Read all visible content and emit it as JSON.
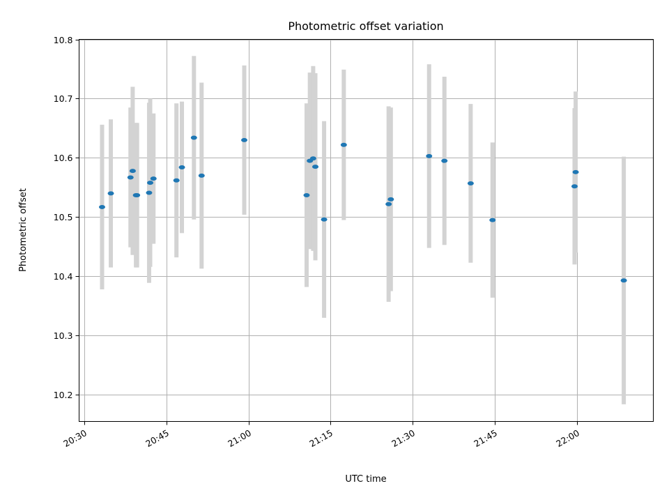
{
  "chart_data": {
    "type": "scatter",
    "title": "Photometric offset variation",
    "xlabel": "UTC time",
    "ylabel": "Photometric offset",
    "xlim": [
      "20:29",
      "22:14"
    ],
    "ylim": [
      10.155,
      10.8
    ],
    "xticks": [
      "20:30",
      "20:45",
      "21:00",
      "21:15",
      "21:30",
      "21:45",
      "22:00"
    ],
    "yticks": [
      "10.2",
      "10.3",
      "10.4",
      "10.5",
      "10.6",
      "10.7",
      "10.8"
    ],
    "grid": true,
    "point_color": "#1f77b4",
    "errorbar_color": "#d3d3d3",
    "points": [
      {
        "x": "20:33:12",
        "y": 10.517,
        "yerr": 0.139
      },
      {
        "x": "20:34:48",
        "y": 10.54,
        "yerr": 0.125
      },
      {
        "x": "20:38:24",
        "y": 10.567,
        "yerr": 0.118
      },
      {
        "x": "20:38:48",
        "y": 10.578,
        "yerr": 0.142
      },
      {
        "x": "20:39:24",
        "y": 10.537,
        "yerr": 0.122
      },
      {
        "x": "20:39:36",
        "y": 10.537,
        "yerr": 0.122
      },
      {
        "x": "20:41:48",
        "y": 10.541,
        "yerr": 0.152
      },
      {
        "x": "20:42:00",
        "y": 10.558,
        "yerr": 0.142
      },
      {
        "x": "20:42:36",
        "y": 10.565,
        "yerr": 0.11
      },
      {
        "x": "20:46:48",
        "y": 10.562,
        "yerr": 0.13
      },
      {
        "x": "20:47:48",
        "y": 10.584,
        "yerr": 0.111
      },
      {
        "x": "20:50:00",
        "y": 10.634,
        "yerr": 0.138
      },
      {
        "x": "20:51:24",
        "y": 10.57,
        "yerr": 0.157
      },
      {
        "x": "20:59:12",
        "y": 10.63,
        "yerr": 0.126
      },
      {
        "x": "21:10:36",
        "y": 10.537,
        "yerr": 0.155
      },
      {
        "x": "21:11:12",
        "y": 10.595,
        "yerr": 0.149
      },
      {
        "x": "21:11:48",
        "y": 10.599,
        "yerr": 0.156
      },
      {
        "x": "21:12:12",
        "y": 10.585,
        "yerr": 0.158
      },
      {
        "x": "21:13:48",
        "y": 10.496,
        "yerr": 0.166
      },
      {
        "x": "21:17:24",
        "y": 10.622,
        "yerr": 0.127
      },
      {
        "x": "21:25:36",
        "y": 10.522,
        "yerr": 0.165
      },
      {
        "x": "21:26:00",
        "y": 10.53,
        "yerr": 0.155
      },
      {
        "x": "21:33:00",
        "y": 10.603,
        "yerr": 0.155
      },
      {
        "x": "21:35:48",
        "y": 10.595,
        "yerr": 0.142
      },
      {
        "x": "21:40:36",
        "y": 10.557,
        "yerr": 0.134
      },
      {
        "x": "21:44:36",
        "y": 10.495,
        "yerr": 0.131
      },
      {
        "x": "21:59:36",
        "y": 10.552,
        "yerr": 0.132
      },
      {
        "x": "21:59:48",
        "y": 10.576,
        "yerr": 0.136
      },
      {
        "x": "22:08:36",
        "y": 10.393,
        "yerr": 0.209
      }
    ]
  }
}
